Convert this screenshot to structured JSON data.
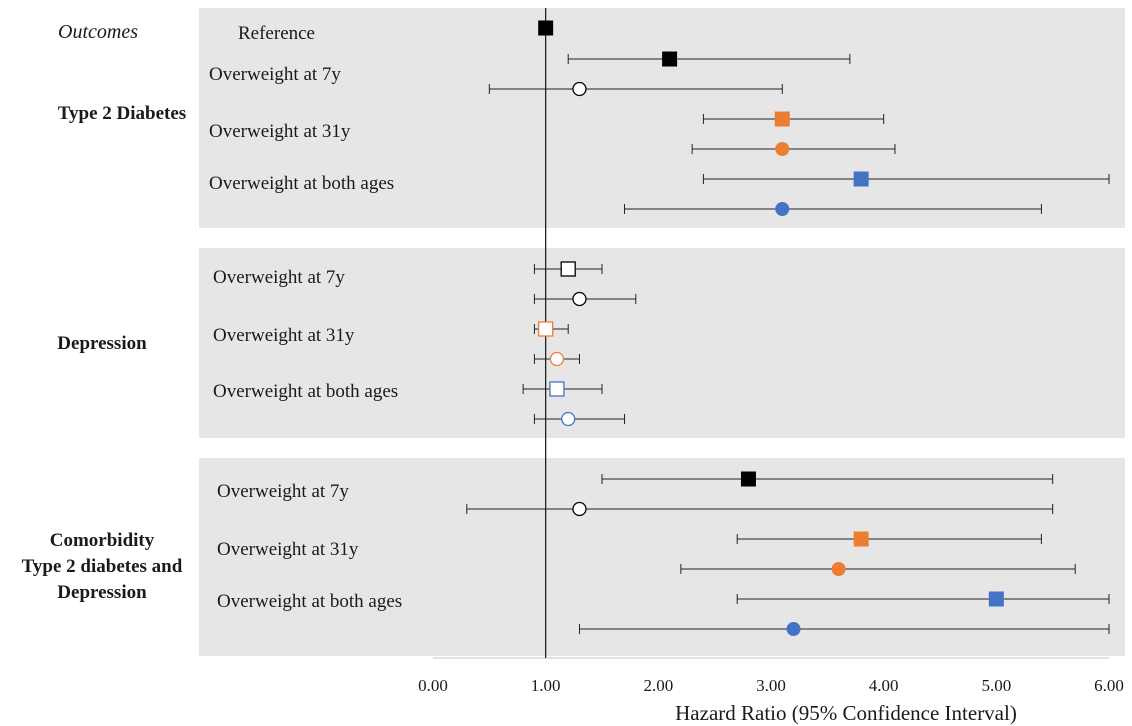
{
  "colors": {
    "panel_bg": "#e6e6e6",
    "black": "#000000",
    "orange": "#ed7d31",
    "blue": "#4472c4",
    "hollow_fill": "#ffffff"
  },
  "chart_data": {
    "type": "forest",
    "header": "Outcomes",
    "xlabel": "Hazard Ratio (95% Confidence Interval)",
    "xlim": [
      0,
      6
    ],
    "x_ticks": [
      "0.00",
      "1.00",
      "2.00",
      "3.00",
      "4.00",
      "5.00",
      "6.00"
    ],
    "reference_line": 1,
    "panels": [
      {
        "outcome_lines": [
          "Type 2 Diabetes"
        ],
        "labels": [
          "Reference",
          "Overweight at 7y",
          "Overweight at 31y",
          "Overweight at both ages"
        ],
        "rows": [
          {
            "est": 1.0,
            "lo": 1.0,
            "hi": 1.0,
            "marker": "square",
            "color": "black",
            "filled": true
          },
          {
            "est": 2.1,
            "lo": 1.2,
            "hi": 3.7,
            "marker": "square",
            "color": "black",
            "filled": true
          },
          {
            "est": 1.3,
            "lo": 0.5,
            "hi": 3.1,
            "marker": "circle",
            "color": "black",
            "filled": false
          },
          {
            "est": 3.1,
            "lo": 2.4,
            "hi": 4.0,
            "marker": "square",
            "color": "orange",
            "filled": true
          },
          {
            "est": 3.1,
            "lo": 2.3,
            "hi": 4.1,
            "marker": "circle",
            "color": "orange",
            "filled": true
          },
          {
            "est": 3.8,
            "lo": 2.4,
            "hi": 6.0,
            "marker": "square",
            "color": "blue",
            "filled": true
          },
          {
            "est": 3.1,
            "lo": 1.7,
            "hi": 5.4,
            "marker": "circle",
            "color": "blue",
            "filled": true
          }
        ]
      },
      {
        "outcome_lines": [
          "Depression"
        ],
        "labels": [
          "Overweight at 7y",
          "Overweight at 31y",
          "Overweight at both ages"
        ],
        "rows": [
          {
            "est": 1.2,
            "lo": 0.9,
            "hi": 1.5,
            "marker": "square",
            "color": "black",
            "filled": false
          },
          {
            "est": 1.3,
            "lo": 0.9,
            "hi": 1.8,
            "marker": "circle",
            "color": "black",
            "filled": false
          },
          {
            "est": 1.0,
            "lo": 0.9,
            "hi": 1.2,
            "marker": "square",
            "color": "orange",
            "filled": false
          },
          {
            "est": 1.1,
            "lo": 0.9,
            "hi": 1.3,
            "marker": "circle",
            "color": "orange",
            "filled": false
          },
          {
            "est": 1.1,
            "lo": 0.8,
            "hi": 1.5,
            "marker": "square",
            "color": "blue",
            "filled": false
          },
          {
            "est": 1.2,
            "lo": 0.9,
            "hi": 1.7,
            "marker": "circle",
            "color": "blue",
            "filled": false
          }
        ]
      },
      {
        "outcome_lines": [
          "Comorbidity",
          "Type 2 diabetes and",
          "Depression"
        ],
        "labels": [
          "Overweight at 7y",
          "Overweight at 31y",
          "Overweight at both ages"
        ],
        "rows": [
          {
            "est": 2.8,
            "lo": 1.5,
            "hi": 5.5,
            "marker": "square",
            "color": "black",
            "filled": true
          },
          {
            "est": 1.3,
            "lo": 0.3,
            "hi": 5.5,
            "marker": "circle",
            "color": "black",
            "filled": false
          },
          {
            "est": 3.8,
            "lo": 2.7,
            "hi": 5.4,
            "marker": "square",
            "color": "orange",
            "filled": true
          },
          {
            "est": 3.6,
            "lo": 2.2,
            "hi": 5.7,
            "marker": "circle",
            "color": "orange",
            "filled": true
          },
          {
            "est": 5.0,
            "lo": 2.7,
            "hi": 6.0,
            "marker": "square",
            "color": "blue",
            "filled": true
          },
          {
            "est": 3.2,
            "lo": 1.3,
            "hi": 6.0,
            "marker": "circle",
            "color": "blue",
            "filled": true
          }
        ]
      }
    ]
  }
}
